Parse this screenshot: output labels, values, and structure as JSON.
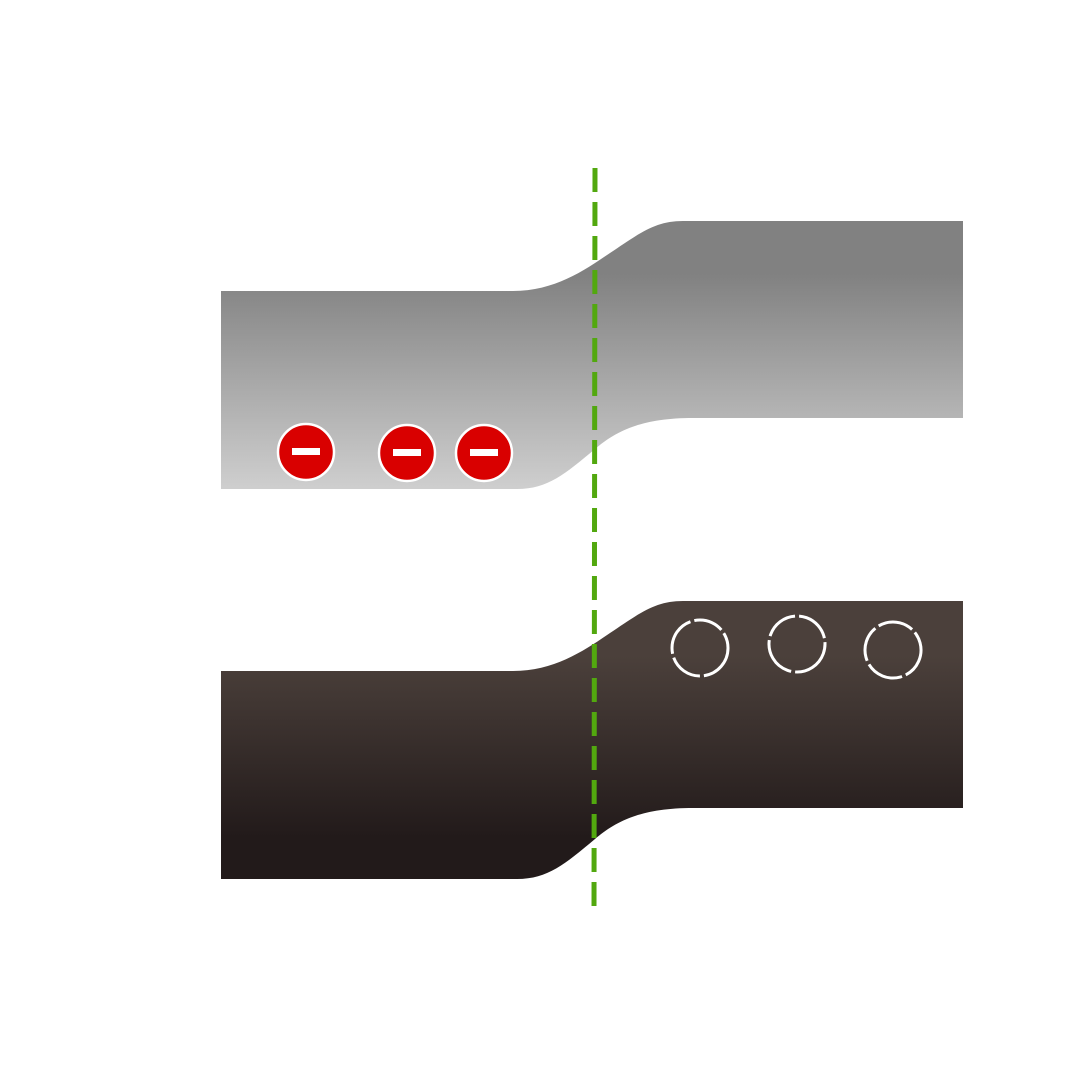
{
  "diagram": {
    "layers": [
      {
        "id": "upper-band",
        "role": "electron-filled band",
        "gradient_top": "#818181",
        "gradient_bottom": "#cfcfcf"
      },
      {
        "id": "lower-band",
        "role": "hole band",
        "gradient_top": "#4b403b",
        "gradient_bottom": "#221a1a"
      }
    ],
    "interface_line": {
      "color": "#52a80f",
      "style": "dashed"
    },
    "electrons": {
      "count": 3,
      "fill": "#d90000",
      "stroke": "#ffffff",
      "symbol": "minus"
    },
    "holes": {
      "count": 3,
      "stroke": "#ffffff",
      "style": "dashed-ring"
    }
  }
}
